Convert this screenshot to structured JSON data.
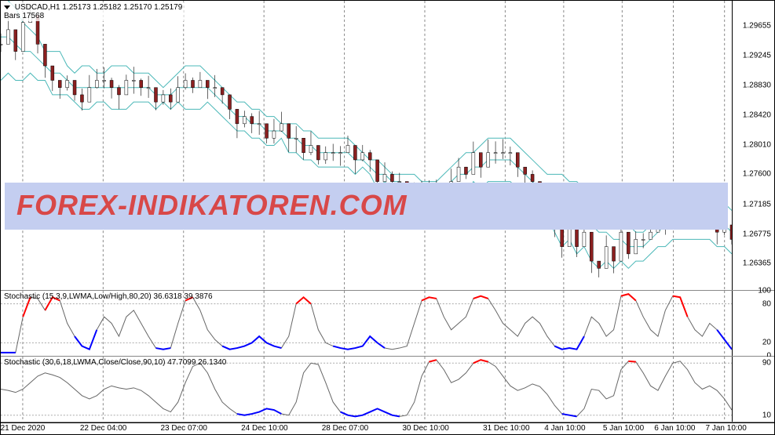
{
  "header": {
    "symbol": "USDCAD,H1",
    "ohlc": "1.25173 1.25182 1.25170 1.25179",
    "bars_label": "Bars",
    "bars_count": "17568"
  },
  "watermark": {
    "text": "FOREX-INDIKATOREN.COM",
    "bg_color": "#c4cef0",
    "text_color": "#d84848",
    "top_pct": 63
  },
  "main_chart": {
    "y_axis": {
      "min": 1.26,
      "max": 1.3,
      "ticks": [
        {
          "v": 1.29655,
          "label": "1.29655"
        },
        {
          "v": 1.29245,
          "label": "1.29245"
        },
        {
          "v": 1.2883,
          "label": "1.28830"
        },
        {
          "v": 1.2842,
          "label": "1.28420"
        },
        {
          "v": 1.2801,
          "label": "1.28010"
        },
        {
          "v": 1.276,
          "label": "1.27600"
        },
        {
          "v": 1.27185,
          "label": "1.27185"
        },
        {
          "v": 1.26775,
          "label": "1.26775"
        },
        {
          "v": 1.26365,
          "label": "1.26365"
        }
      ]
    },
    "bb_upper": [
      1.301,
      1.3,
      1.299,
      1.297,
      1.296,
      1.295,
      1.293,
      1.293,
      1.293,
      1.291,
      1.29,
      1.291,
      1.291,
      1.29,
      1.29,
      1.291,
      1.291,
      1.291,
      1.29,
      1.29,
      1.29,
      1.289,
      1.288,
      1.289,
      1.29,
      1.291,
      1.291,
      1.291,
      1.29,
      1.289,
      1.288,
      1.287,
      1.286,
      1.286,
      1.285,
      1.285,
      1.284,
      1.284,
      1.283,
      1.283,
      1.283,
      1.282,
      1.282,
      1.281,
      1.281,
      1.281,
      1.281,
      1.281,
      1.28,
      1.279,
      1.278,
      1.278,
      1.277,
      1.276,
      1.276,
      1.276,
      1.276,
      1.275,
      1.275,
      1.275,
      1.276,
      1.277,
      1.278,
      1.279,
      1.279,
      1.28,
      1.281,
      1.281,
      1.281,
      1.281,
      1.28,
      1.279,
      1.278,
      1.277,
      1.276,
      1.276,
      1.276,
      1.275,
      1.275,
      1.274,
      1.274,
      1.273,
      1.272,
      1.271,
      1.27,
      1.269,
      1.268,
      1.268,
      1.269,
      1.27,
      1.272,
      1.273,
      1.273,
      1.273,
      1.273,
      1.273,
      1.273,
      1.272,
      1.272,
      1.271
    ],
    "bb_mid": [
      1.295,
      1.295,
      1.294,
      1.293,
      1.293,
      1.292,
      1.291,
      1.29,
      1.29,
      1.289,
      1.288,
      1.288,
      1.288,
      1.288,
      1.288,
      1.288,
      1.288,
      1.288,
      1.288,
      1.288,
      1.288,
      1.287,
      1.287,
      1.287,
      1.288,
      1.288,
      1.288,
      1.288,
      1.288,
      1.287,
      1.286,
      1.285,
      1.284,
      1.284,
      1.283,
      1.283,
      1.282,
      1.282,
      1.282,
      1.281,
      1.281,
      1.28,
      1.28,
      1.279,
      1.279,
      1.279,
      1.279,
      1.279,
      1.278,
      1.278,
      1.277,
      1.276,
      1.276,
      1.275,
      1.275,
      1.274,
      1.274,
      1.274,
      1.274,
      1.274,
      1.274,
      1.275,
      1.276,
      1.276,
      1.277,
      1.277,
      1.278,
      1.278,
      1.278,
      1.278,
      1.277,
      1.276,
      1.275,
      1.274,
      1.273,
      1.272,
      1.271,
      1.271,
      1.27,
      1.27,
      1.269,
      1.268,
      1.268,
      1.267,
      1.267,
      1.266,
      1.266,
      1.266,
      1.267,
      1.268,
      1.269,
      1.27,
      1.27,
      1.27,
      1.27,
      1.27,
      1.27,
      1.269,
      1.269,
      1.268
    ],
    "bb_lower": [
      1.289,
      1.29,
      1.289,
      1.289,
      1.29,
      1.289,
      1.289,
      1.287,
      1.287,
      1.287,
      1.286,
      1.285,
      1.285,
      1.286,
      1.286,
      1.285,
      1.285,
      1.285,
      1.286,
      1.286,
      1.286,
      1.285,
      1.286,
      1.285,
      1.286,
      1.285,
      1.285,
      1.285,
      1.286,
      1.285,
      1.284,
      1.283,
      1.282,
      1.282,
      1.281,
      1.281,
      1.28,
      1.28,
      1.281,
      1.279,
      1.279,
      1.278,
      1.278,
      1.277,
      1.277,
      1.277,
      1.277,
      1.277,
      1.276,
      1.277,
      1.276,
      1.274,
      1.275,
      1.274,
      1.274,
      1.272,
      1.272,
      1.273,
      1.273,
      1.273,
      1.272,
      1.273,
      1.274,
      1.273,
      1.275,
      1.274,
      1.275,
      1.275,
      1.275,
      1.275,
      1.274,
      1.273,
      1.272,
      1.271,
      1.27,
      1.268,
      1.266,
      1.267,
      1.265,
      1.266,
      1.264,
      1.263,
      1.264,
      1.263,
      1.264,
      1.263,
      1.264,
      1.264,
      1.265,
      1.266,
      1.266,
      1.267,
      1.267,
      1.267,
      1.267,
      1.267,
      1.267,
      1.266,
      1.266,
      1.265
    ],
    "candles_close": [
      1.294,
      1.296,
      1.293,
      1.297,
      1.298,
      1.294,
      1.291,
      1.289,
      1.288,
      1.289,
      1.287,
      1.286,
      1.288,
      1.289,
      1.289,
      1.288,
      1.287,
      1.289,
      1.289,
      1.288,
      1.288,
      1.286,
      1.287,
      1.286,
      1.288,
      1.289,
      1.288,
      1.289,
      1.288,
      1.288,
      1.287,
      1.285,
      1.283,
      1.284,
      1.283,
      1.283,
      1.281,
      1.282,
      1.283,
      1.281,
      1.281,
      1.279,
      1.28,
      1.278,
      1.279,
      1.279,
      1.279,
      1.28,
      1.278,
      1.279,
      1.278,
      1.275,
      1.276,
      1.275,
      1.275,
      1.272,
      1.273,
      1.274,
      1.274,
      1.274,
      1.273,
      1.275,
      1.277,
      1.276,
      1.279,
      1.277,
      1.279,
      1.279,
      1.279,
      1.279,
      1.277,
      1.276,
      1.275,
      1.273,
      1.272,
      1.269,
      1.266,
      1.269,
      1.266,
      1.268,
      1.264,
      1.263,
      1.266,
      1.264,
      1.268,
      1.265,
      1.267,
      1.267,
      1.268,
      1.27,
      1.269,
      1.273,
      1.272,
      1.271,
      1.272,
      1.272,
      1.271,
      1.268,
      1.269,
      1.267
    ],
    "candles_high_offset": 0.002,
    "candles_low_offset": 0.002
  },
  "osc1": {
    "label": "Stochastic (15,3,9,LWMA,Low/High,80,20) 36.6318 39.3876",
    "y_ticks": [
      {
        "v": 0,
        "label": "0"
      },
      {
        "v": 20,
        "label": "20"
      },
      {
        "v": 80,
        "label": "80"
      },
      {
        "v": 100,
        "label": "100"
      }
    ],
    "levels": [
      20,
      80
    ],
    "data": [
      5,
      5,
      5,
      60,
      90,
      88,
      70,
      90,
      85,
      50,
      30,
      15,
      10,
      40,
      60,
      50,
      30,
      60,
      70,
      50,
      30,
      12,
      10,
      12,
      50,
      85,
      90,
      70,
      40,
      25,
      15,
      10,
      12,
      15,
      20,
      30,
      20,
      15,
      12,
      30,
      80,
      90,
      80,
      40,
      20,
      15,
      12,
      10,
      12,
      15,
      30,
      20,
      12,
      10,
      12,
      15,
      50,
      85,
      90,
      88,
      60,
      40,
      50,
      60,
      88,
      92,
      88,
      70,
      50,
      40,
      30,
      50,
      60,
      50,
      30,
      15,
      10,
      12,
      10,
      30,
      60,
      50,
      30,
      40,
      92,
      95,
      85,
      60,
      40,
      30,
      70,
      92,
      90,
      60,
      40,
      30,
      50,
      40,
      25,
      10
    ],
    "red_ranges": [
      [
        3,
        4
      ],
      [
        6,
        8
      ],
      [
        25,
        26
      ],
      [
        40,
        42
      ],
      [
        57,
        59
      ],
      [
        64,
        66
      ],
      [
        84,
        86
      ],
      [
        91,
        93
      ]
    ],
    "blue_ranges": [
      [
        0,
        2
      ],
      [
        10,
        13
      ],
      [
        21,
        23
      ],
      [
        30,
        38
      ],
      [
        45,
        52
      ],
      [
        75,
        79
      ],
      [
        97,
        99
      ]
    ]
  },
  "osc2": {
    "label": "Stochastic (30,6,18,LWMA,Close/Close,90,10) 47.7099 26.1340",
    "y_ticks": [
      {
        "v": 10,
        "label": "10"
      },
      {
        "v": 90,
        "label": "90"
      }
    ],
    "levels": [
      10,
      90
    ],
    "data": [
      50,
      48,
      45,
      50,
      60,
      70,
      75,
      72,
      68,
      60,
      50,
      40,
      35,
      40,
      50,
      55,
      52,
      50,
      52,
      48,
      40,
      30,
      20,
      15,
      30,
      60,
      85,
      90,
      75,
      50,
      30,
      20,
      12,
      10,
      12,
      15,
      20,
      18,
      12,
      10,
      30,
      75,
      90,
      88,
      60,
      30,
      15,
      10,
      8,
      10,
      15,
      20,
      15,
      10,
      8,
      10,
      30,
      70,
      92,
      95,
      80,
      60,
      65,
      75,
      90,
      95,
      92,
      85,
      70,
      55,
      48,
      52,
      58,
      54,
      42,
      25,
      12,
      10,
      8,
      20,
      50,
      48,
      35,
      40,
      80,
      93,
      92,
      75,
      55,
      48,
      70,
      90,
      93,
      80,
      60,
      50,
      55,
      48,
      35,
      18
    ],
    "red_ranges": [
      [
        58,
        59
      ],
      [
        64,
        66
      ],
      [
        85,
        86
      ]
    ],
    "blue_ranges": [
      [
        32,
        38
      ],
      [
        46,
        54
      ],
      [
        76,
        78
      ]
    ]
  },
  "x_axis": {
    "labels": [
      {
        "pct": 3,
        "text": "21 Dec 2020"
      },
      {
        "pct": 15,
        "text": "22 Dec 04:00"
      },
      {
        "pct": 27,
        "text": "23 Dec 07:00"
      },
      {
        "pct": 39,
        "text": "24 Dec 10:00"
      },
      {
        "pct": 51,
        "text": "28 Dec 07:00"
      },
      {
        "pct": 63,
        "text": "30 Dec 10:00"
      },
      {
        "pct": 74,
        "text": "31 Dec 10:00"
      },
      {
        "pct": 82,
        "text": "7 Jan 10:00"
      }
    ],
    "grid_x_pct": [
      3,
      15,
      27,
      39,
      51,
      63,
      74,
      82,
      88,
      95
    ]
  },
  "x_axis_real": {
    "labels": [
      {
        "pct": 3,
        "text": "21 Dec 2020"
      },
      {
        "pct": 14,
        "text": "22 Dec 04:00"
      },
      {
        "pct": 25,
        "text": "23 Dec 07:00"
      },
      {
        "pct": 36,
        "text": "24 Dec 10:00"
      },
      {
        "pct": 47,
        "text": "28 Dec 07:00"
      },
      {
        "pct": 58,
        "text": "30 Dec 10:00"
      },
      {
        "pct": 69,
        "text": "31 Dec 10:00"
      },
      {
        "pct": 77,
        "text": "4 Jan 10:00"
      },
      {
        "pct": 85,
        "text": "5 Jan 10:00"
      },
      {
        "pct": 92,
        "text": "6 Jan 10:00"
      },
      {
        "pct": 99,
        "text": "7 Jan 10:00"
      }
    ],
    "grid_x_pct": [
      3,
      14,
      25,
      36,
      47,
      58,
      69,
      77,
      85,
      92,
      99
    ]
  },
  "colors": {
    "bb": "#4bb8b8",
    "grid": "#888888",
    "osc_main": "#666666",
    "osc_red": "#ff0000",
    "osc_blue": "#0000ff",
    "candle_up": "#000000",
    "candle_down": "#8b0000"
  }
}
